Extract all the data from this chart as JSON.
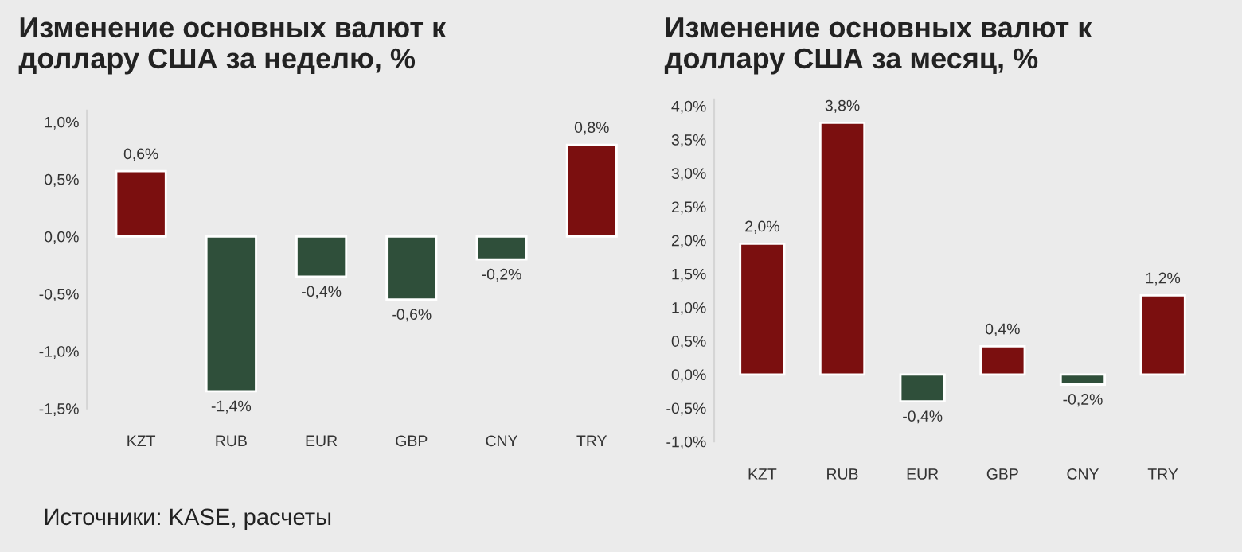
{
  "chart_data": [
    {
      "type": "bar",
      "title": "Изменение основных валют к\nдоллару США за неделю, %",
      "categories": [
        "KZT",
        "RUB",
        "EUR",
        "GBP",
        "CNY",
        "TRY"
      ],
      "values": [
        0.57,
        -1.35,
        -0.35,
        -0.55,
        -0.2,
        0.8
      ],
      "value_labels": [
        "0,6%",
        "-1,4%",
        "-0,4%",
        "-0,6%",
        "-0,2%",
        "0,8%"
      ],
      "colors": [
        "#7b0f0f",
        "#2f4f3a",
        "#2f4f3a",
        "#2f4f3a",
        "#2f4f3a",
        "#7b0f0f"
      ],
      "ylim": [
        -1.5,
        1.1
      ],
      "yticks": [
        {
          "value": -1.5,
          "label": "-1,5%"
        },
        {
          "value": -1.0,
          "label": "-1,0%"
        },
        {
          "value": -0.5,
          "label": "-0,5%"
        },
        {
          "value": 0.0,
          "label": "0,0%"
        },
        {
          "value": 0.5,
          "label": "0,5%"
        },
        {
          "value": 1.0,
          "label": "1,0%"
        }
      ],
      "grid": false,
      "legend": false,
      "annotations": [
        "Источники: KASE, расчеты"
      ]
    },
    {
      "type": "bar",
      "title": "Изменение основных валют к\nдоллару США за месяц, %",
      "categories": [
        "KZT",
        "RUB",
        "EUR",
        "GBP",
        "CNY",
        "TRY"
      ],
      "values": [
        1.95,
        3.75,
        -0.4,
        0.42,
        -0.15,
        1.18
      ],
      "value_labels": [
        "2,0%",
        "3,8%",
        "-0,4%",
        "0,4%",
        "-0,2%",
        "1,2%"
      ],
      "colors": [
        "#7b0f0f",
        "#7b0f0f",
        "#2f4f3a",
        "#7b0f0f",
        "#2f4f3a",
        "#7b0f0f"
      ],
      "ylim": [
        -1.0,
        4.1
      ],
      "yticks": [
        {
          "value": -1.0,
          "label": "-1,0%"
        },
        {
          "value": -0.5,
          "label": "-0,5%"
        },
        {
          "value": 0.0,
          "label": "0,0%"
        },
        {
          "value": 0.5,
          "label": "0,5%"
        },
        {
          "value": 1.0,
          "label": "1,0%"
        },
        {
          "value": 1.5,
          "label": "1,5%"
        },
        {
          "value": 2.0,
          "label": "2,0%"
        },
        {
          "value": 2.5,
          "label": "2,5%"
        },
        {
          "value": 3.0,
          "label": "3,0%"
        },
        {
          "value": 3.5,
          "label": "3,5%"
        },
        {
          "value": 4.0,
          "label": "4,0%"
        }
      ],
      "grid": false,
      "legend": false
    }
  ]
}
